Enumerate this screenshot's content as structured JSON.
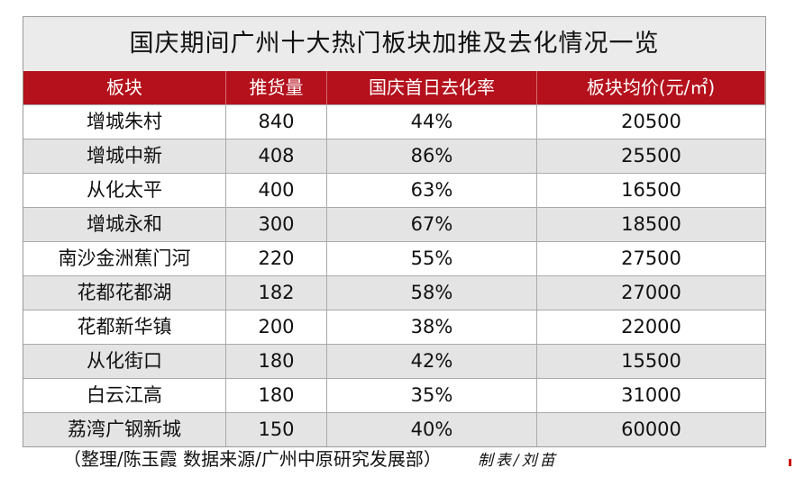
{
  "title": "国庆期间广州十大热门板块加推及去化情况一览",
  "table": {
    "header": [
      "板块",
      "推货量",
      "国庆首日去化率",
      "板块均价(元/㎡)"
    ],
    "rows": [
      [
        "增城朱村",
        "840",
        "44%",
        "20500"
      ],
      [
        "增城中新",
        "408",
        "86%",
        "25500"
      ],
      [
        "从化太平",
        "400",
        "63%",
        "16500"
      ],
      [
        "增城永和",
        "300",
        "67%",
        "18500"
      ],
      [
        "南沙金洲蕉门河",
        "220",
        "55%",
        "27500"
      ],
      [
        "花都花都湖",
        "182",
        "58%",
        "27000"
      ],
      [
        "花都新华镇",
        "200",
        "38%",
        "22000"
      ],
      [
        "从化街口",
        "180",
        "42%",
        "15500"
      ],
      [
        "白云江高",
        "180",
        "35%",
        "31000"
      ],
      [
        "荔湾广钢新城",
        "150",
        "40%",
        "60000"
      ]
    ]
  },
  "footer": {
    "source": "（整理/陈玉霞 数据来源/广州中原研究发展部）",
    "credit": "制表/刘苗"
  }
}
